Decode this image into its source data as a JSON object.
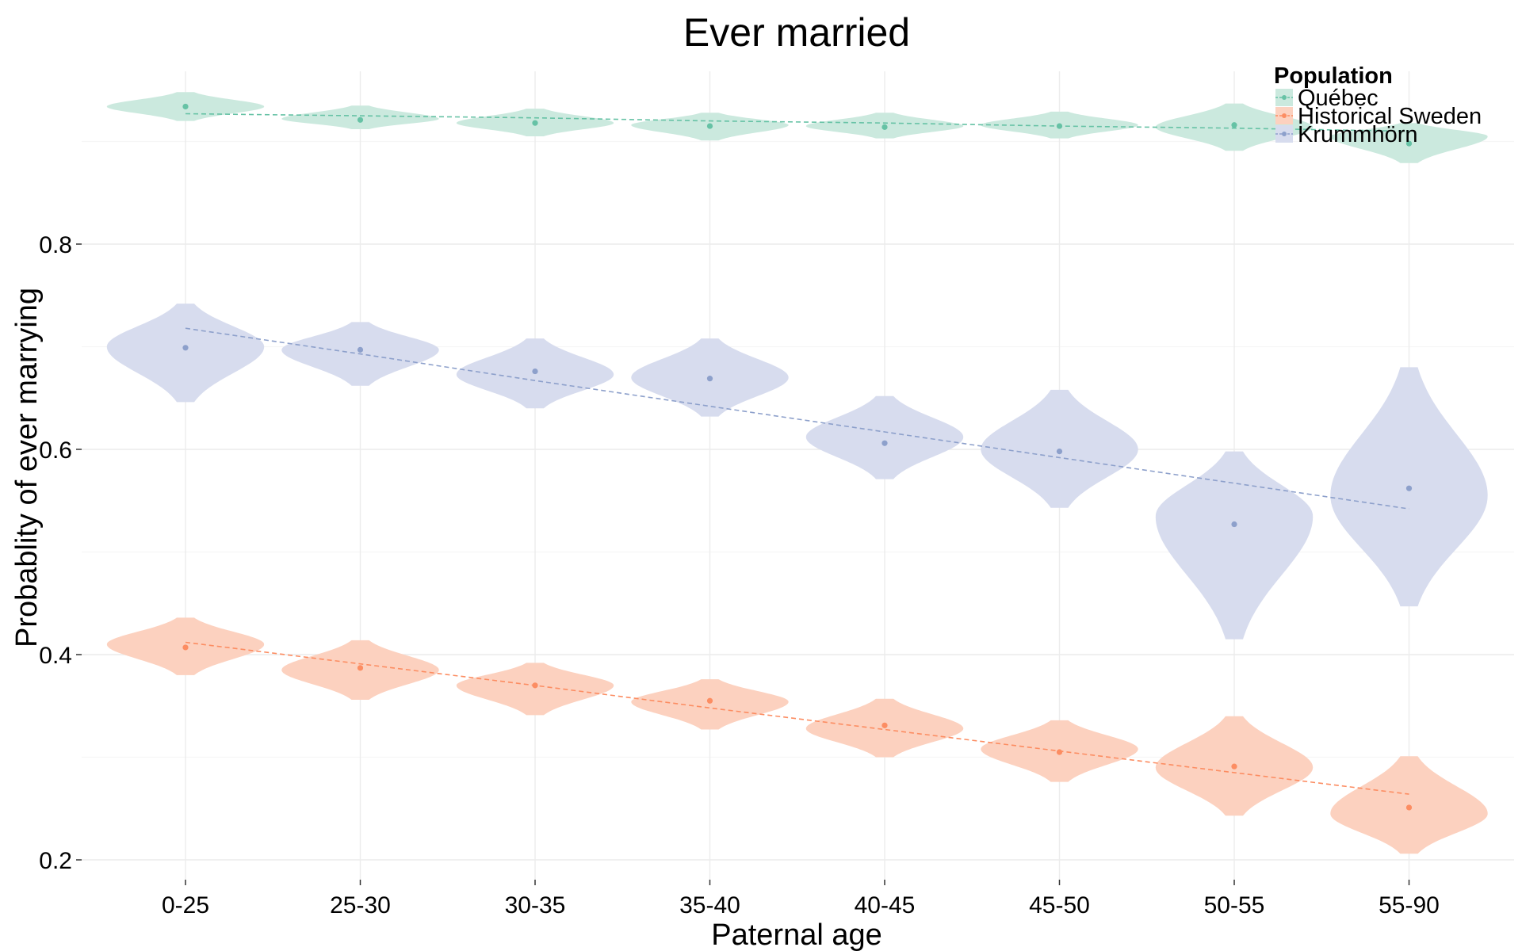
{
  "chart_data": {
    "type": "violin",
    "title": "Ever married",
    "xlabel": "Paternal age",
    "ylabel": "Probablity of ever marrying",
    "categories": [
      "0-25",
      "25-30",
      "30-35",
      "35-40",
      "40-45",
      "45-50",
      "50-55",
      "55-90"
    ],
    "ylim": [
      0.18,
      0.96
    ],
    "yticks": [
      0.2,
      0.4,
      0.6,
      0.8
    ],
    "ytick_labels": [
      "0.2",
      "0.4",
      "0.6",
      "0.8"
    ],
    "grid": true,
    "legend": {
      "title": "Population",
      "position": "top-right"
    },
    "series": [
      {
        "name": "Québec",
        "color": "#66c2a5",
        "fill": "#cbe9de",
        "points": [
          0.934,
          0.921,
          0.918,
          0.915,
          0.914,
          0.915,
          0.916,
          0.898
        ],
        "trend": [
          0.927,
          0.925,
          0.923,
          0.92,
          0.918,
          0.915,
          0.913,
          0.91
        ],
        "violins": [
          {
            "lo": 0.92,
            "hi": 0.948,
            "mode": 0.934,
            "hw": 0.45
          },
          {
            "lo": 0.912,
            "hi": 0.935,
            "mode": 0.922,
            "hw": 0.45
          },
          {
            "lo": 0.905,
            "hi": 0.932,
            "mode": 0.918,
            "hw": 0.45
          },
          {
            "lo": 0.901,
            "hi": 0.928,
            "mode": 0.916,
            "hw": 0.45
          },
          {
            "lo": 0.903,
            "hi": 0.928,
            "mode": 0.915,
            "hw": 0.45
          },
          {
            "lo": 0.903,
            "hi": 0.929,
            "mode": 0.916,
            "hw": 0.45
          },
          {
            "lo": 0.891,
            "hi": 0.937,
            "mode": 0.914,
            "hw": 0.45
          },
          {
            "lo": 0.879,
            "hi": 0.918,
            "mode": 0.905,
            "hw": 0.45
          }
        ]
      },
      {
        "name": "Historical Sweden",
        "color": "#fc8d62",
        "fill": "#fcd1bf",
        "points": [
          0.407,
          0.387,
          0.37,
          0.355,
          0.331,
          0.305,
          0.291,
          0.251
        ],
        "trend": [
          0.412,
          0.391,
          0.37,
          0.348,
          0.327,
          0.306,
          0.285,
          0.264
        ],
        "violins": [
          {
            "lo": 0.38,
            "hi": 0.436,
            "mode": 0.41,
            "hw": 0.45
          },
          {
            "lo": 0.356,
            "hi": 0.414,
            "mode": 0.385,
            "hw": 0.45
          },
          {
            "lo": 0.341,
            "hi": 0.392,
            "mode": 0.37,
            "hw": 0.45
          },
          {
            "lo": 0.327,
            "hi": 0.376,
            "mode": 0.354,
            "hw": 0.45
          },
          {
            "lo": 0.3,
            "hi": 0.357,
            "mode": 0.328,
            "hw": 0.45
          },
          {
            "lo": 0.276,
            "hi": 0.336,
            "mode": 0.308,
            "hw": 0.45
          },
          {
            "lo": 0.243,
            "hi": 0.34,
            "mode": 0.29,
            "hw": 0.45
          },
          {
            "lo": 0.206,
            "hi": 0.301,
            "mode": 0.245,
            "hw": 0.45
          }
        ]
      },
      {
        "name": "Krummhörn",
        "color": "#8da0cb",
        "fill": "#d7dcee",
        "points": [
          0.699,
          0.697,
          0.676,
          0.669,
          0.606,
          0.598,
          0.527,
          0.562
        ],
        "trend": [
          0.718,
          0.693,
          0.667,
          0.642,
          0.617,
          0.592,
          0.567,
          0.542
        ],
        "violins": [
          {
            "lo": 0.646,
            "hi": 0.742,
            "mode": 0.7,
            "hw": 0.45
          },
          {
            "lo": 0.662,
            "hi": 0.724,
            "mode": 0.697,
            "hw": 0.45
          },
          {
            "lo": 0.64,
            "hi": 0.708,
            "mode": 0.673,
            "hw": 0.45
          },
          {
            "lo": 0.632,
            "hi": 0.708,
            "mode": 0.67,
            "hw": 0.45
          },
          {
            "lo": 0.571,
            "hi": 0.652,
            "mode": 0.612,
            "hw": 0.45
          },
          {
            "lo": 0.543,
            "hi": 0.658,
            "mode": 0.6,
            "hw": 0.45
          },
          {
            "lo": 0.415,
            "hi": 0.598,
            "mode": 0.535,
            "hw": 0.45
          },
          {
            "lo": 0.447,
            "hi": 0.68,
            "mode": 0.555,
            "hw": 0.45
          }
        ]
      }
    ]
  }
}
